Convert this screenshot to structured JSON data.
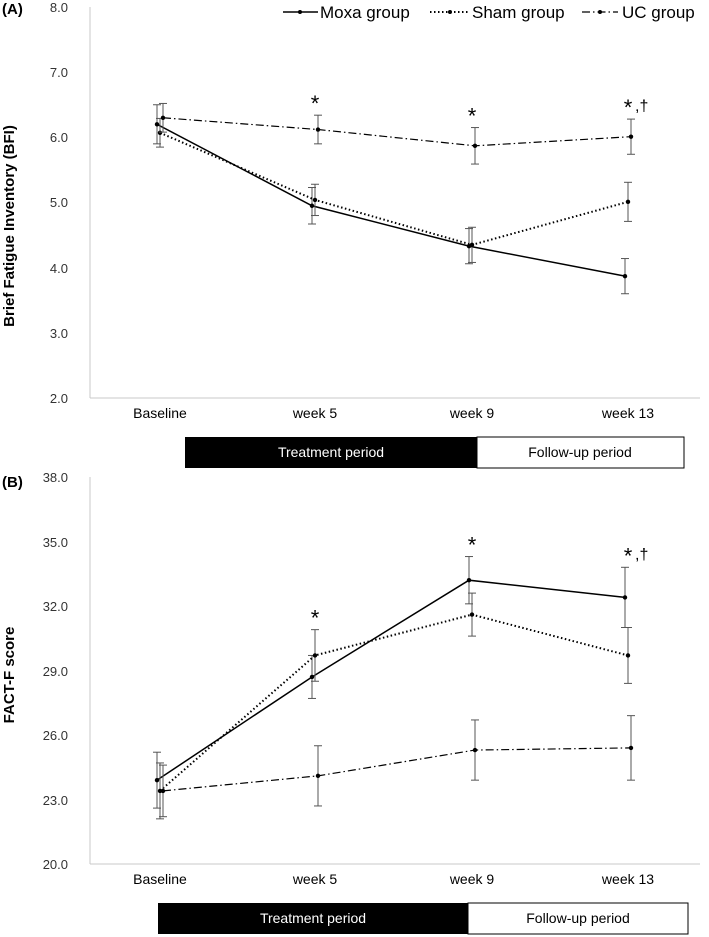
{
  "legend": [
    "Moxa group",
    "Sham group",
    "UC group"
  ],
  "periods": {
    "treatment": "Treatment period",
    "followup": "Follow-up period"
  },
  "chart_data": [
    {
      "panel_label": "(A)",
      "type": "line",
      "ylabel": "Brief  Fatigue  Inventory (BFI)",
      "categories": [
        "Baseline",
        "week 5",
        "week 9",
        "week 13"
      ],
      "ylim": [
        2.0,
        8.0
      ],
      "yticks": [
        "2.0",
        "3.0",
        "4.0",
        "5.0",
        "6.0",
        "7.0",
        "8.0"
      ],
      "series": [
        {
          "name": "Moxa group",
          "style": "solid",
          "values": [
            6.2,
            4.95,
            4.33,
            3.87
          ],
          "err": [
            0.3,
            0.28,
            0.27,
            0.27
          ]
        },
        {
          "name": "Sham group",
          "style": "dotted",
          "values": [
            6.07,
            5.04,
            4.35,
            5.01
          ],
          "err": [
            0.22,
            0.24,
            0.27,
            0.3
          ]
        },
        {
          "name": "UC group",
          "style": "dashdot",
          "values": [
            6.3,
            6.12,
            5.87,
            6.01
          ],
          "err": [
            0.22,
            0.22,
            0.28,
            0.27
          ]
        }
      ],
      "annotations": [
        {
          "category": "week 5",
          "star": "*",
          "dagger": ""
        },
        {
          "category": "week 9",
          "star": "*",
          "dagger": ""
        },
        {
          "category": "week 13",
          "star": "*",
          "dagger": ",†"
        }
      ]
    },
    {
      "panel_label": "(B)",
      "type": "line",
      "ylabel": "FACT-F score",
      "categories": [
        "Baseline",
        "week 5",
        "week 9",
        "week 13"
      ],
      "ylim": [
        20.0,
        38.0
      ],
      "yticks": [
        "20.0",
        "23.0",
        "26.0",
        "29.0",
        "32.0",
        "35.0",
        "38.0"
      ],
      "series": [
        {
          "name": "Moxa group",
          "style": "solid",
          "values": [
            23.9,
            28.7,
            33.2,
            32.4
          ],
          "err": [
            1.3,
            1.0,
            1.1,
            1.4
          ]
        },
        {
          "name": "Sham group",
          "style": "dotted",
          "values": [
            23.4,
            29.7,
            31.6,
            29.7
          ],
          "err": [
            1.3,
            1.2,
            1.0,
            1.3
          ]
        },
        {
          "name": "UC group",
          "style": "dashdot",
          "values": [
            23.4,
            24.1,
            25.3,
            25.4
          ],
          "err": [
            1.2,
            1.4,
            1.4,
            1.5
          ]
        }
      ],
      "annotations": [
        {
          "category": "week 5",
          "star": "*",
          "dagger": ""
        },
        {
          "category": "week 9",
          "star": "*",
          "dagger": ""
        },
        {
          "category": "week 13",
          "star": "*",
          "dagger": ",†"
        }
      ]
    }
  ]
}
